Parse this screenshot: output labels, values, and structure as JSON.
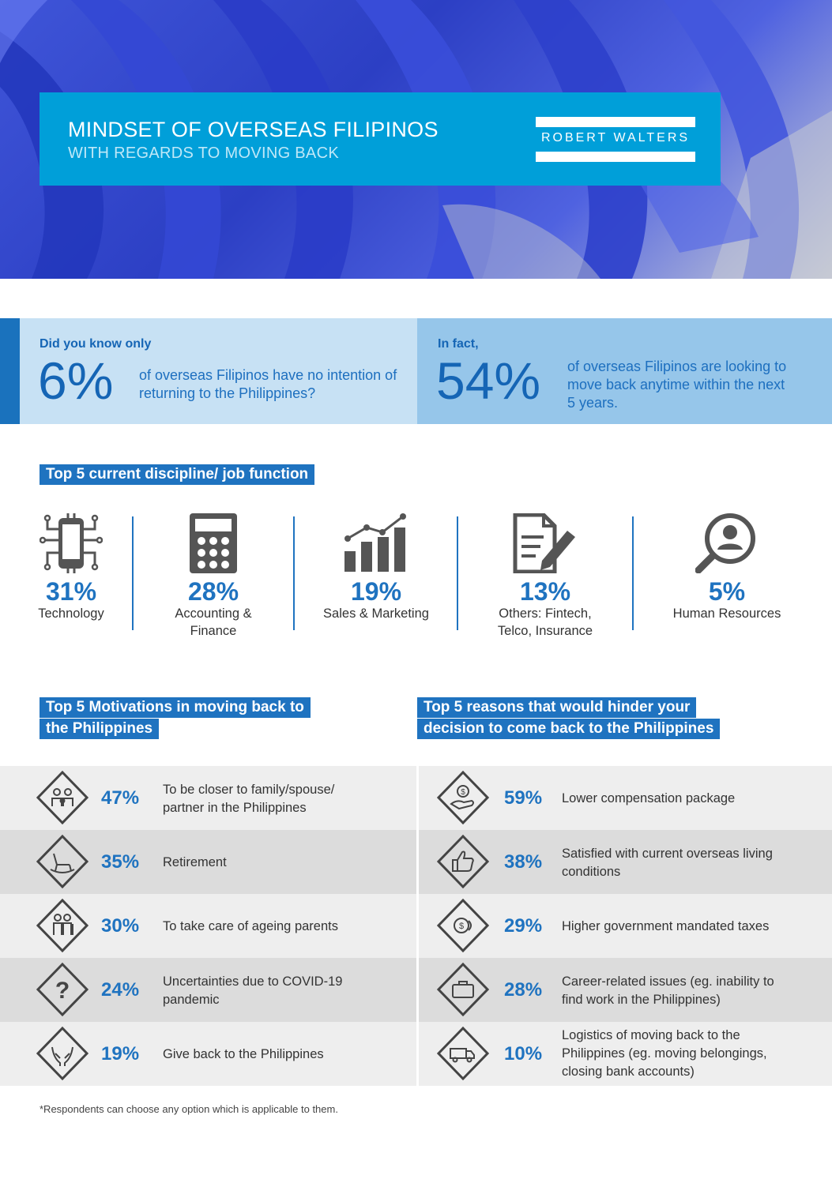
{
  "header": {
    "title": "MINDSET OF OVERSEAS FILIPINOS",
    "subtitle": "WITH REGARDS TO MOVING BACK",
    "logo_text": "ROBERT WALTERS"
  },
  "stats": {
    "left": {
      "label": "Did you know only",
      "value": "6%",
      "text": "of overseas Filipinos have no intention of returning to the Philippines?"
    },
    "right": {
      "label": "In fact,",
      "value": "54%",
      "text": "of overseas Filipinos are looking to move back anytime within the next 5 years."
    }
  },
  "jobs": {
    "title": "Top 5 current discipline/ job function",
    "items": [
      {
        "pct": "31%",
        "label": "Technology",
        "icon": "circuit-phone-icon"
      },
      {
        "pct": "28%",
        "label": "Accounting &\nFinance",
        "icon": "calculator-icon"
      },
      {
        "pct": "19%",
        "label": "Sales & Marketing",
        "icon": "growth-chart-icon"
      },
      {
        "pct": "13%",
        "label": "Others: Fintech,\nTelco, Insurance",
        "icon": "document-pen-icon"
      },
      {
        "pct": "5%",
        "label": "Human Resources",
        "icon": "person-search-icon"
      }
    ]
  },
  "motivations": {
    "title_line1": "Top 5 Motivations in moving back to",
    "title_line2": "the Philippines",
    "items": [
      {
        "pct": "47%",
        "text": "To be closer to family/spouse/\npartner in the Philippines",
        "icon": "family-icon"
      },
      {
        "pct": "35%",
        "text": "Retirement",
        "icon": "rocking-chair-icon"
      },
      {
        "pct": "30%",
        "text": "To take care of ageing parents",
        "icon": "elderly-couple-icon"
      },
      {
        "pct": "24%",
        "text": "Uncertainties due to COVID-19\npandemic",
        "icon": "question-icon"
      },
      {
        "pct": "19%",
        "text": "Give back to the Philippines",
        "icon": "giving-hands-icon"
      }
    ]
  },
  "hindrances": {
    "title_line1": "Top 5 reasons that would hinder your",
    "title_line2": "decision to come back to the Philippines",
    "items": [
      {
        "pct": "59%",
        "text": "Lower compensation package",
        "icon": "money-hand-icon"
      },
      {
        "pct": "38%",
        "text": "Satisfied with current overseas living\nconditions",
        "icon": "thumbs-up-icon"
      },
      {
        "pct": "29%",
        "text": "Higher government mandated taxes",
        "icon": "coins-icon"
      },
      {
        "pct": "28%",
        "text": "Career-related issues (eg. inability to\nfind work in the Philippines)",
        "icon": "briefcase-icon"
      },
      {
        "pct": "10%",
        "text": "Logistics of moving back to the\nPhilippines (eg. moving belongings,\nclosing bank accounts)",
        "icon": "truck-icon"
      }
    ]
  },
  "footnote": "*Respondents can choose any option which is applicable to them.",
  "colors": {
    "brand_blue": "#1f73c0",
    "title_box": "#009fd9",
    "stat_left_bg": "#c7e1f4",
    "stat_right_bg": "#96c6ea"
  }
}
